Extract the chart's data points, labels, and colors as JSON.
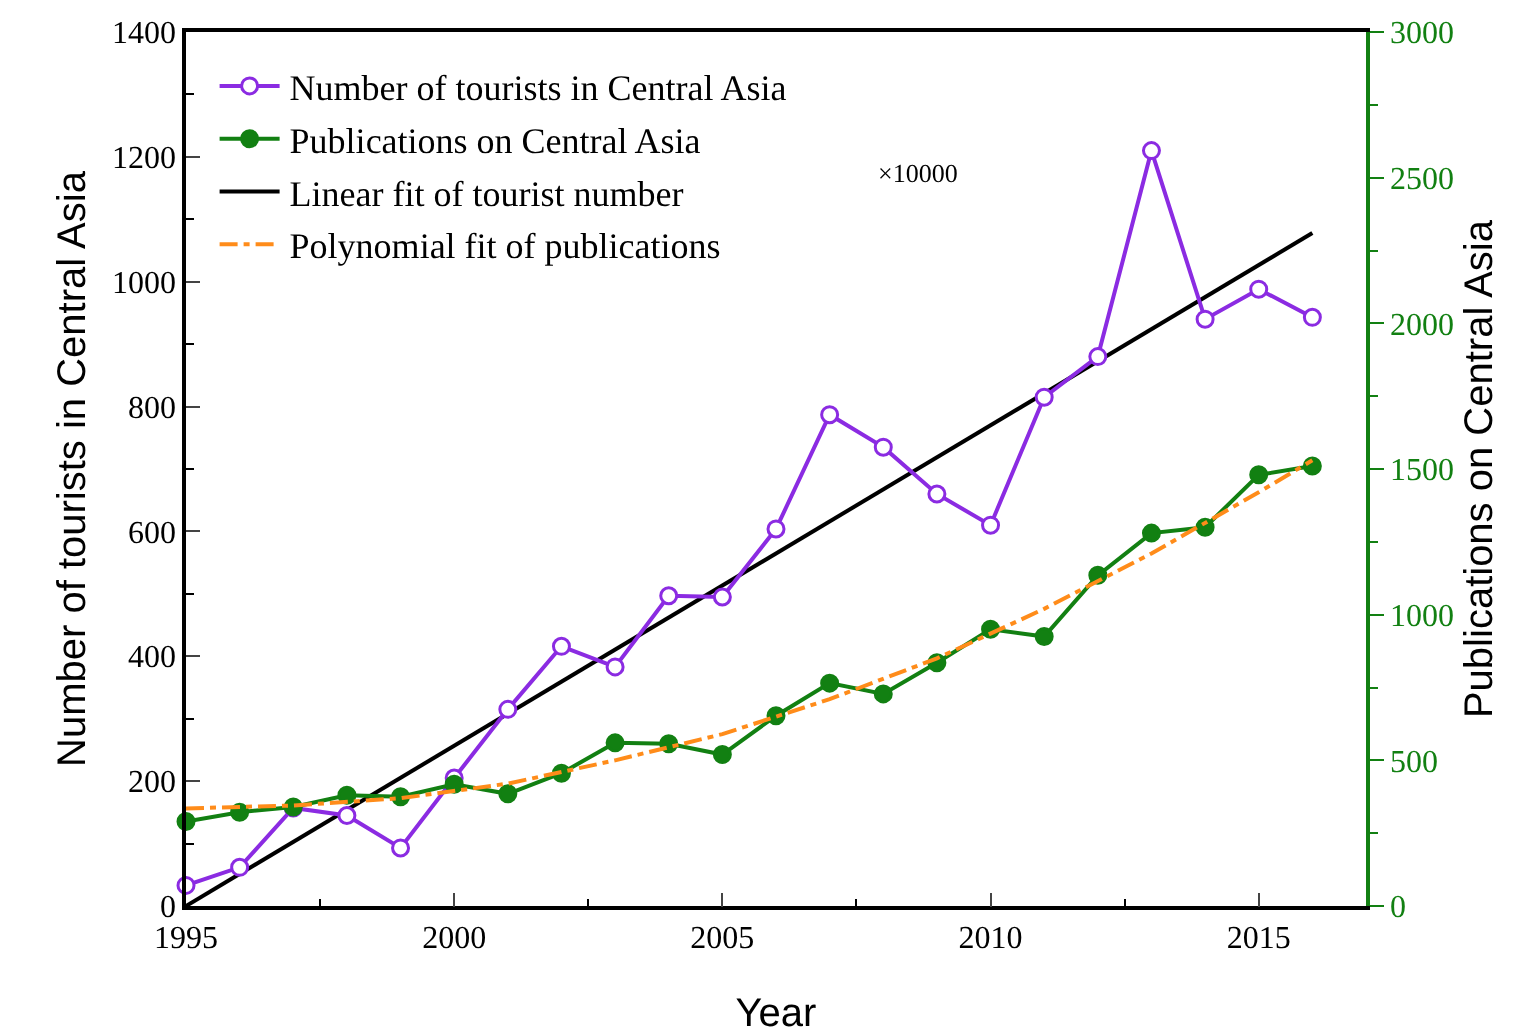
{
  "chart_data": {
    "type": "line",
    "xlabel": "Year",
    "ylabel": "Number of tourists in Central Asia",
    "y2label": "Publications on Central Asia",
    "annotations": [
      "×10000"
    ],
    "xlim": [
      1995,
      2017
    ],
    "xticks": [
      1995,
      2000,
      2005,
      2010,
      2015
    ],
    "ylim": [
      0,
      1400
    ],
    "yticks": [
      0,
      200,
      400,
      600,
      800,
      1000,
      1200,
      1400
    ],
    "y2lim": [
      0,
      3000
    ],
    "y2ticks": [
      0,
      500,
      1000,
      1500,
      2000,
      2500,
      3000
    ],
    "grid": false,
    "legend": "top left",
    "x": [
      1995,
      1996,
      1997,
      1998,
      1999,
      2000,
      2001,
      2002,
      2003,
      2004,
      2005,
      2006,
      2007,
      2008,
      2009,
      2010,
      2011,
      2012,
      2013,
      2014,
      2015,
      2016
    ],
    "series": [
      {
        "name": "Number of tourists in Central Asia",
        "color": "#8b2be2",
        "marker": "circle-open",
        "line_style": "solid",
        "values": [
          33,
          62,
          157,
          145,
          93,
          205,
          315,
          416,
          383,
          497,
          495,
          604,
          787,
          735,
          660,
          610,
          815,
          880,
          1210,
          940,
          988,
          943
        ]
      },
      {
        "name": "Publications on Central Asia",
        "color": "#128012",
        "marker": "circle",
        "line_style": "solid",
        "axis": "y2",
        "values": [
          290,
          322,
          340,
          380,
          375,
          418,
          385,
          456,
          560,
          557,
          520,
          653,
          765,
          728,
          835,
          950,
          925,
          1135,
          1280,
          1300,
          1480,
          1510
        ]
      },
      {
        "name": "Linear fit of tourist number",
        "color": "#000000",
        "marker": "none",
        "line_style": "solid",
        "x": [
          1995,
          2016
        ],
        "values": [
          0,
          1078
        ]
      },
      {
        "name": "Polynomial fit of publications",
        "color": "#ff8c1a",
        "marker": "none",
        "line_style": "dashdot",
        "axis": "y2",
        "x": [
          1995,
          1997,
          1999,
          2001,
          2003,
          2005,
          2007,
          2009,
          2011,
          2013,
          2015,
          2016
        ],
        "values": [
          335,
          345,
          370,
          420,
          500,
          590,
          710,
          850,
          1020,
          1210,
          1420,
          1530
        ]
      }
    ]
  }
}
